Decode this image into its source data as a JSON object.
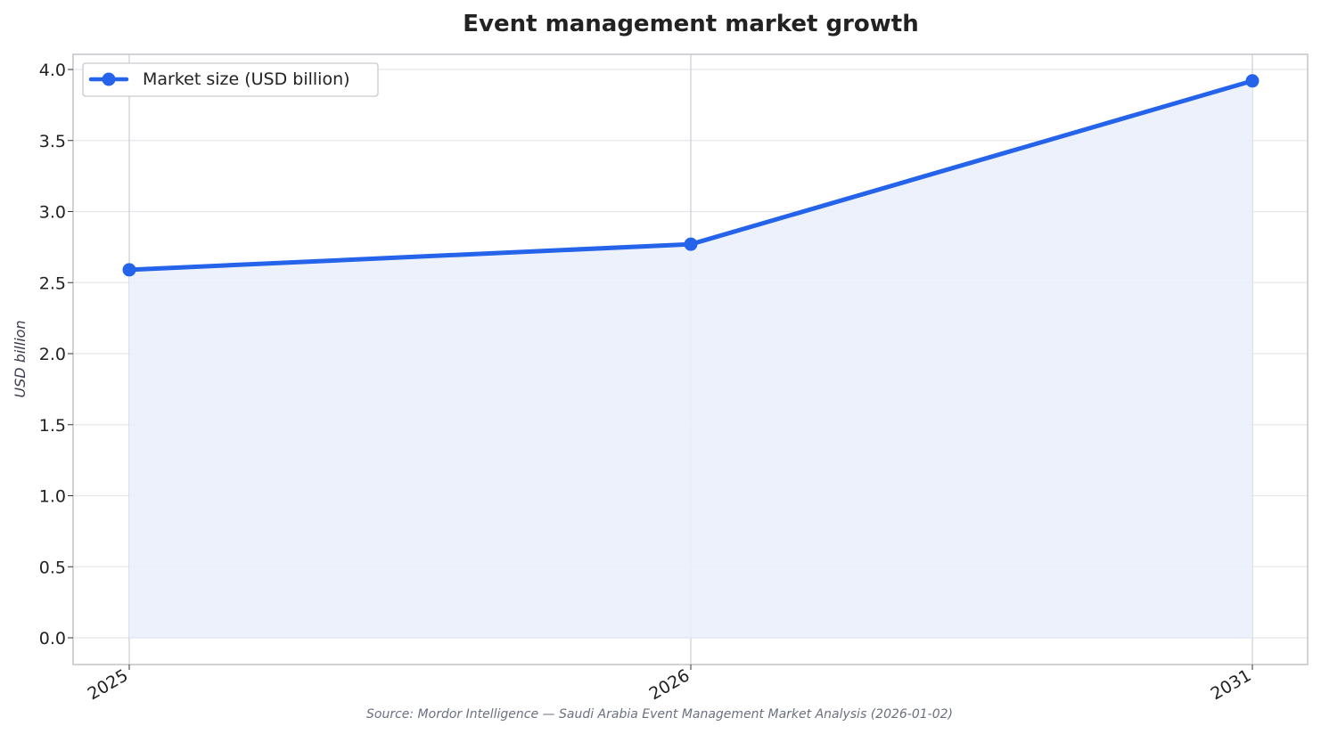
{
  "colors": {
    "series": "#2563eb",
    "fill": "#eaf0fb",
    "grid": "#e8e8ec",
    "vgrid": "#c9cdd6",
    "frame": "#c4c4c8",
    "text": "#222222"
  },
  "chart_data": {
    "type": "line",
    "title": "Event management market growth",
    "xlabel": "",
    "ylabel": "USD billion",
    "x": [
      "2025",
      "2026",
      "2031"
    ],
    "series": [
      {
        "name": "Market size (USD billion)",
        "values": [
          2.59,
          2.77,
          3.92
        ]
      }
    ],
    "ylim": [
      -0.18,
      4.1
    ],
    "yticks": [
      "0.0",
      "0.5",
      "1.0",
      "1.5",
      "2.0",
      "2.5",
      "3.0",
      "3.5",
      "4.0"
    ],
    "grid": true,
    "area_fill": true,
    "legend": "top-left",
    "source": "Source: Mordor Intelligence — Saudi Arabia Event Management Market Analysis (2026-01-02)"
  }
}
